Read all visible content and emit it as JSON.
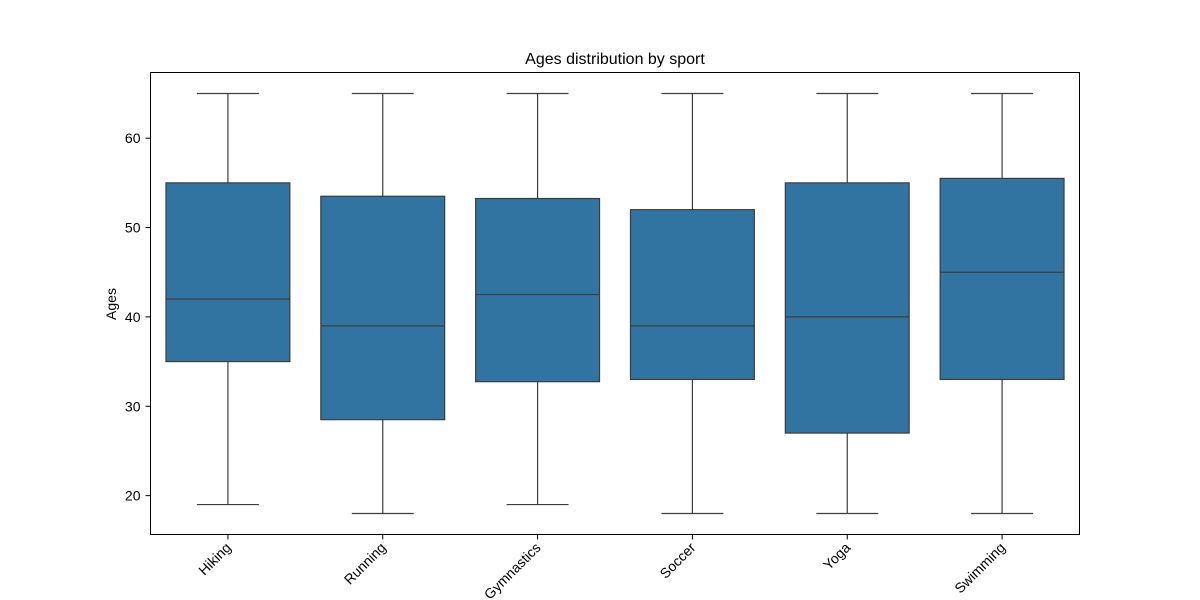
{
  "chart_data": {
    "type": "box",
    "title": "Ages distribution by sport",
    "xlabel": "",
    "ylabel": "Ages",
    "ylim": [
      15.65,
      67.35
    ],
    "yticks": [
      20,
      30,
      40,
      50,
      60
    ],
    "grid": false,
    "colors": {
      "box_fill": "#3274a1",
      "line": "#3d3d3d",
      "axis": "#000000"
    },
    "categories": [
      "Hiking",
      "Running",
      "Gymnastics",
      "Soccer",
      "Yoga",
      "Swimming"
    ],
    "boxes": [
      {
        "category": "Hiking",
        "whisker_low": 19,
        "q1": 35,
        "median": 42,
        "q3": 55,
        "whisker_high": 65
      },
      {
        "category": "Running",
        "whisker_low": 18,
        "q1": 28.5,
        "median": 39,
        "q3": 53.5,
        "whisker_high": 65
      },
      {
        "category": "Gymnastics",
        "whisker_low": 19,
        "q1": 32.75,
        "median": 42.5,
        "q3": 53.25,
        "whisker_high": 65
      },
      {
        "category": "Soccer",
        "whisker_low": 18,
        "q1": 33,
        "median": 39,
        "q3": 52,
        "whisker_high": 65
      },
      {
        "category": "Yoga",
        "whisker_low": 18,
        "q1": 27,
        "median": 40,
        "q3": 55,
        "whisker_high": 65
      },
      {
        "category": "Swimming",
        "whisker_low": 18,
        "q1": 33,
        "median": 45,
        "q3": 55.5,
        "whisker_high": 65
      }
    ]
  }
}
